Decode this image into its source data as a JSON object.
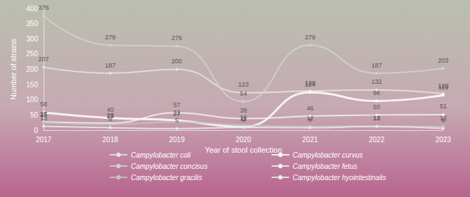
{
  "chart_data": {
    "type": "line",
    "x_label": "Year of stool collection",
    "y_label": "Number of strains",
    "categories": [
      "2017",
      "2018",
      "2019",
      "2020",
      "2021",
      "2022",
      "2023"
    ],
    "series": [
      {
        "name": "Campylobacter coli",
        "color": "#e4e4e4",
        "marker": "circle",
        "values": [
          207,
          187,
          200,
          123,
          129,
          132,
          120
        ]
      },
      {
        "name": "Campylobacter curvus",
        "color": "#ffffff",
        "marker": "circle",
        "values": [
          58,
          40,
          32,
          11,
          124,
          96,
          115
        ]
      },
      {
        "name": "Campylobacter concisus",
        "color": "#d2d2d2",
        "marker": "circle",
        "values": [
          376,
          279,
          276,
          94,
          279,
          187,
          203
        ]
      },
      {
        "name": "Campylobacter fetus",
        "color": "#f2f2f2",
        "marker": "circle",
        "values": [
          27,
          23,
          57,
          38,
          46,
          50,
          51
        ]
      },
      {
        "name": "Campylobacter gracilis",
        "color": "#c4c4c4",
        "marker": "circle",
        "values": [
          25,
          19,
          27,
          16,
          12,
          13,
          12
        ]
      },
      {
        "name": "Campylobacter hyointestinalis",
        "color": "#ebebeb",
        "marker": "circle",
        "values": [
          13,
          8,
          5,
          9,
          8,
          12,
          6
        ]
      }
    ],
    "ylim": [
      0,
      400
    ],
    "yticks": [
      0,
      50,
      100,
      150,
      200,
      250,
      300,
      350,
      400
    ],
    "grid": false,
    "data_labels": true
  }
}
